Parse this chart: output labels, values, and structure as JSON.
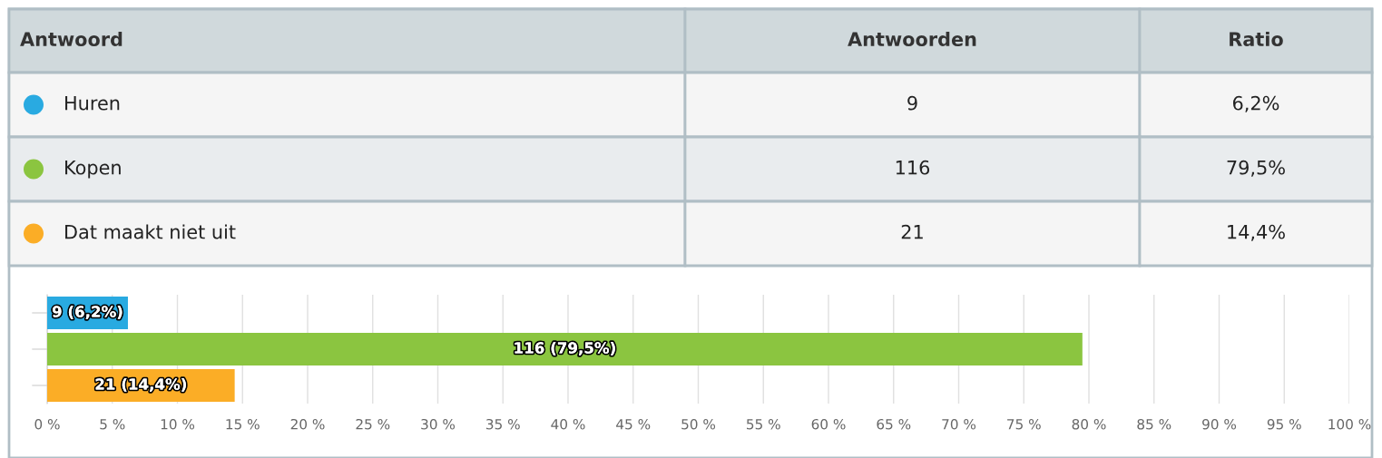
{
  "chart_data": {
    "type": "bar",
    "orientation": "horizontal",
    "categories": [
      null,
      null,
      null
    ],
    "series": [
      {
        "name": "Huren",
        "color": "#29aae1",
        "values": [
          6.2,
          null,
          null
        ],
        "value_labels": [
          "9 (6,2%)",
          null,
          null
        ]
      },
      {
        "name": "Kopen",
        "color": "#8bc540",
        "values": [
          null,
          79.5,
          null
        ],
        "value_labels": [
          null,
          "116 (79,5%)",
          null
        ]
      },
      {
        "name": "Dat maakt niet uit",
        "color": "#fbad26",
        "values": [
          null,
          null,
          14.4
        ],
        "value_labels": [
          null,
          null,
          "21 (14,4%)"
        ]
      }
    ],
    "annotations": [
      "Antwoord",
      "Antwoorden",
      "Ratio",
      "9",
      "6,2%",
      "116",
      "79,5%",
      "21",
      "14,4%"
    ],
    "xlim": [
      0,
      100
    ],
    "xticks": [
      {
        "value": 0,
        "label": "0 %"
      },
      {
        "value": 5,
        "label": "5 %"
      },
      {
        "value": 10,
        "label": "10 %"
      },
      {
        "value": 15,
        "label": "15 %"
      },
      {
        "value": 20,
        "label": "20 %"
      },
      {
        "value": 25,
        "label": "25 %"
      },
      {
        "value": 30,
        "label": "30 %"
      },
      {
        "value": 35,
        "label": "35 %"
      },
      {
        "value": 40,
        "label": "40 %"
      },
      {
        "value": 45,
        "label": "45 %"
      },
      {
        "value": 50,
        "label": "50 %"
      },
      {
        "value": 55,
        "label": "55 %"
      },
      {
        "value": 60,
        "label": "60 %"
      },
      {
        "value": 65,
        "label": "65 %"
      },
      {
        "value": 70,
        "label": "70 %"
      },
      {
        "value": 75,
        "label": "75 %"
      },
      {
        "value": 80,
        "label": "80 %"
      },
      {
        "value": 85,
        "label": "85 %"
      },
      {
        "value": 90,
        "label": "90 %"
      },
      {
        "value": 95,
        "label": "95 %"
      },
      {
        "value": 100,
        "label": "100 %"
      }
    ],
    "grid": "x",
    "tick_labels": "x",
    "legend": "top"
  }
}
